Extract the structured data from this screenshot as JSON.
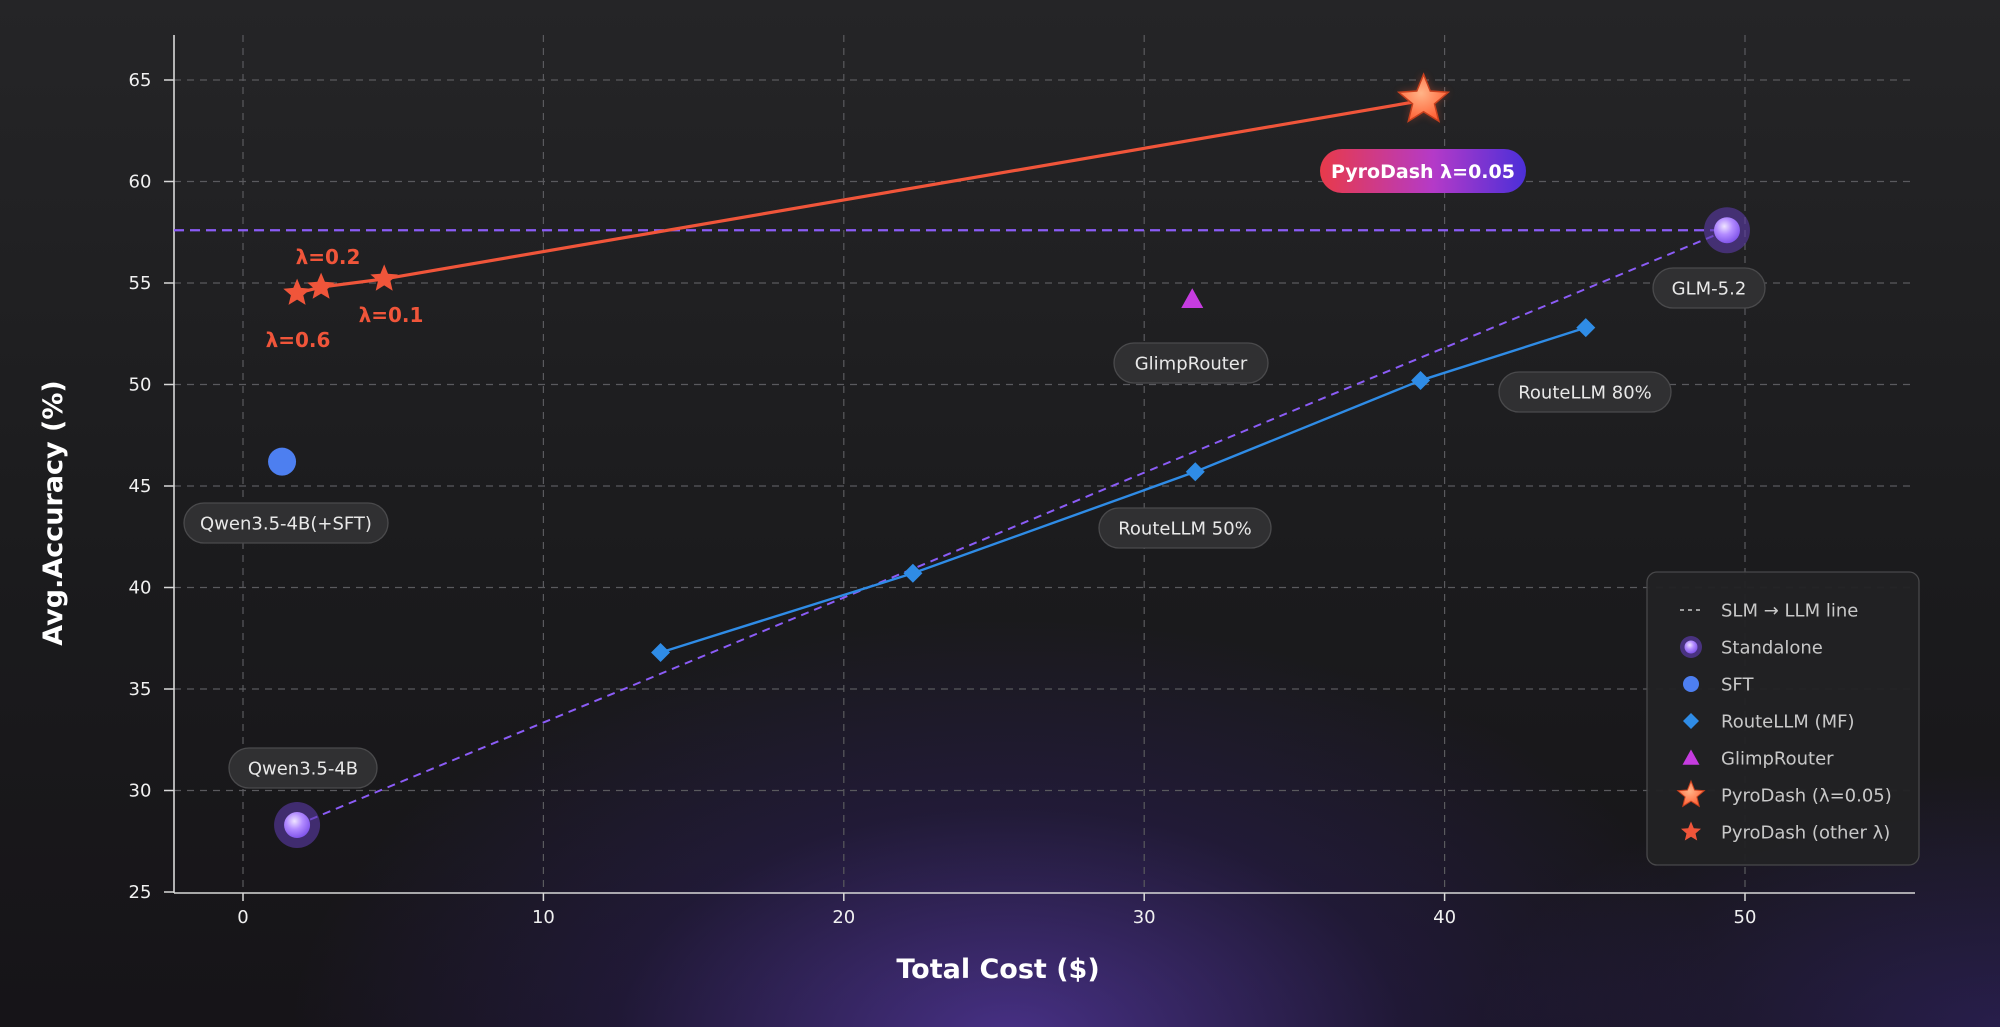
{
  "chart_data": {
    "type": "scatter",
    "xlabel": "Total Cost ($)",
    "ylabel": "Avg.Accuracy (%)",
    "xlim": [
      -2.5,
      55.8
    ],
    "ylim": [
      25,
      67.5
    ],
    "xticks": [
      0,
      10,
      20,
      30,
      40,
      50
    ],
    "yticks": [
      25,
      30,
      35,
      40,
      45,
      50,
      55,
      60,
      65
    ],
    "grid": true,
    "legend_position": "bottom-right",
    "slm_llm_line": {
      "from": {
        "x": 1.8,
        "y": 28.3
      },
      "to": {
        "x": 49.4,
        "y": 57.6
      },
      "horizontal_y": 57.6
    },
    "series": [
      {
        "name": "Standalone",
        "marker": "circle-glow",
        "color": "#a98cf5",
        "points": [
          {
            "x": 1.8,
            "y": 28.3,
            "label": "Qwen3.5-4B"
          },
          {
            "x": 49.4,
            "y": 57.6,
            "label": "GLM-5.2"
          }
        ]
      },
      {
        "name": "SFT",
        "marker": "circle",
        "color": "#4d7ff0",
        "points": [
          {
            "x": 1.3,
            "y": 46.2,
            "label": "Qwen3.5-4B(+SFT)"
          }
        ]
      },
      {
        "name": "RouteLLM (MF)",
        "marker": "diamond",
        "color": "#2f8ce6",
        "line": true,
        "points": [
          {
            "x": 13.9,
            "y": 36.8
          },
          {
            "x": 22.3,
            "y": 40.7
          },
          {
            "x": 31.7,
            "y": 45.7,
            "label": "RouteLLM 50%"
          },
          {
            "x": 39.2,
            "y": 50.2
          },
          {
            "x": 44.7,
            "y": 52.8,
            "label": "RouteLLM 80%"
          }
        ]
      },
      {
        "name": "GlimpRouter",
        "marker": "triangle",
        "color": "#c63ce0",
        "points": [
          {
            "x": 31.6,
            "y": 54.2,
            "label": "GlimpRouter"
          }
        ]
      },
      {
        "name": "PyroDash (λ=0.05)",
        "marker": "star-large",
        "color": "#ff6a3d",
        "points": [
          {
            "x": 39.3,
            "y": 64.0,
            "label": "PyroDash λ=0.05"
          }
        ]
      },
      {
        "name": "PyroDash (other λ)",
        "marker": "star",
        "color": "#f0553a",
        "points": [
          {
            "x": 1.8,
            "y": 54.5,
            "label": "λ=0.6"
          },
          {
            "x": 2.6,
            "y": 54.8,
            "label": "λ=0.2"
          },
          {
            "x": 4.7,
            "y": 55.2,
            "label": "λ=0.1"
          }
        ]
      }
    ],
    "pyrodash_line": [
      {
        "x": 1.8,
        "y": 54.5
      },
      {
        "x": 2.6,
        "y": 54.8
      },
      {
        "x": 4.7,
        "y": 55.2
      },
      {
        "x": 39.3,
        "y": 64.0
      }
    ],
    "legend": [
      {
        "label": "SLM → LLM line",
        "marker": "dashed-line"
      },
      {
        "label": "Standalone",
        "marker": "circle-glow"
      },
      {
        "label": "SFT",
        "marker": "circle"
      },
      {
        "label": "RouteLLM (MF)",
        "marker": "diamond"
      },
      {
        "label": "GlimpRouter",
        "marker": "triangle"
      },
      {
        "label": "PyroDash (λ=0.05)",
        "marker": "star-large"
      },
      {
        "label": "PyroDash (other λ)",
        "marker": "star"
      }
    ]
  },
  "colors": {
    "grid": "#5a5a5e",
    "axis": "#d8d8d8",
    "slm_line": "#8b5cf6",
    "routellm": "#2f8ce6",
    "glimp": "#c63ce0",
    "pyrodash": "#f0553a",
    "pill_bg": "#303032",
    "pill_border": "#4a4a4c",
    "legend_bg": "#222224"
  }
}
